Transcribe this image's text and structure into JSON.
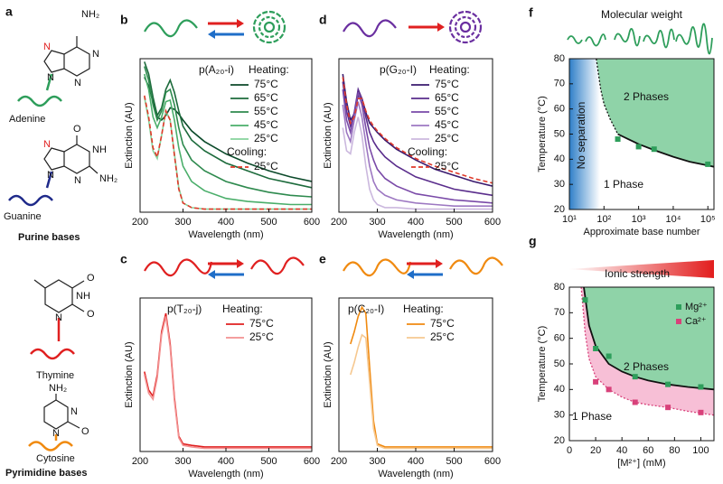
{
  "panel_a": {
    "label": "a",
    "molecules": [
      {
        "name": "Adenine",
        "atoms": [
          "NH₂",
          "N",
          "N",
          "N",
          "N"
        ]
      },
      {
        "name": "Guanine",
        "atoms": [
          "O",
          "NH",
          "NH₂",
          "N",
          "N",
          "N"
        ]
      },
      {
        "name": "Thymine",
        "atoms": [
          "O",
          "NH",
          "O",
          "N"
        ]
      },
      {
        "name": "Cytosine",
        "atoms": [
          "NH₂",
          "N",
          "O",
          "N"
        ]
      }
    ],
    "groups": [
      "Purine bases",
      "Pyrimidine bases"
    ]
  },
  "chart_data": [
    {
      "type": "spectrum",
      "label": "b",
      "title": "p(A₂₀-i)",
      "heating_label": "Heating:",
      "cooling_label": "Cooling:",
      "xlabel": "Wavelength (nm)",
      "ylabel": "Extinction (AU)",
      "xlim": [
        200,
        600
      ],
      "xticks": [
        200,
        300,
        400,
        500,
        600
      ],
      "ylim": [
        0,
        1
      ],
      "x": [
        210,
        220,
        230,
        240,
        250,
        260,
        270,
        280,
        290,
        300,
        320,
        350,
        400,
        450,
        500,
        550,
        600
      ],
      "series": [
        {
          "name": "75°C",
          "color": "#0b4a2a",
          "values": [
            0.88,
            0.82,
            0.72,
            0.62,
            0.6,
            0.63,
            0.68,
            0.67,
            0.64,
            0.6,
            0.53,
            0.46,
            0.38,
            0.32,
            0.27,
            0.23,
            0.2
          ]
        },
        {
          "name": "65°C",
          "color": "#1d6b3c",
          "values": [
            0.98,
            0.9,
            0.75,
            0.63,
            0.68,
            0.8,
            0.86,
            0.78,
            0.66,
            0.56,
            0.47,
            0.4,
            0.32,
            0.27,
            0.22,
            0.19,
            0.16
          ]
        },
        {
          "name": "55°C",
          "color": "#2e8a4e",
          "values": [
            0.95,
            0.86,
            0.7,
            0.6,
            0.66,
            0.78,
            0.8,
            0.7,
            0.55,
            0.44,
            0.34,
            0.27,
            0.2,
            0.16,
            0.13,
            0.11,
            0.1
          ]
        },
        {
          "name": "45°C",
          "color": "#4aae6a",
          "values": [
            0.9,
            0.8,
            0.62,
            0.55,
            0.62,
            0.72,
            0.73,
            0.6,
            0.42,
            0.3,
            0.2,
            0.14,
            0.09,
            0.07,
            0.06,
            0.05,
            0.05
          ]
        },
        {
          "name": "25°C",
          "color": "#86d39c",
          "values": [
            0.75,
            0.6,
            0.4,
            0.35,
            0.5,
            0.66,
            0.6,
            0.38,
            0.16,
            0.06,
            0.03,
            0.02,
            0.02,
            0.02,
            0.02,
            0.02,
            0.02
          ]
        },
        {
          "name": "25°C",
          "color": "#e03a2a",
          "dashed": true,
          "values": [
            0.76,
            0.62,
            0.42,
            0.36,
            0.5,
            0.66,
            0.6,
            0.37,
            0.15,
            0.06,
            0.03,
            0.02,
            0.02,
            0.02,
            0.02,
            0.02,
            0.02
          ]
        }
      ]
    },
    {
      "type": "spectrum",
      "label": "d",
      "title": "p(G₂₀-I)",
      "heating_label": "Heating:",
      "cooling_label": "Cooling:",
      "xlabel": "Wavelength (nm)",
      "ylabel": "Extinction (AU)",
      "xlim": [
        200,
        600
      ],
      "xticks": [
        200,
        300,
        400,
        500,
        600
      ],
      "ylim": [
        0,
        1
      ],
      "x": [
        210,
        220,
        230,
        240,
        250,
        260,
        270,
        280,
        290,
        300,
        320,
        350,
        400,
        450,
        500,
        550,
        600
      ],
      "series": [
        {
          "name": "75°C",
          "color": "#3a1a6e",
          "values": [
            0.9,
            0.72,
            0.6,
            0.64,
            0.76,
            0.74,
            0.65,
            0.58,
            0.55,
            0.52,
            0.47,
            0.41,
            0.34,
            0.28,
            0.24,
            0.2,
            0.17
          ]
        },
        {
          "name": "65°C",
          "color": "#5a2d8c",
          "values": [
            0.85,
            0.66,
            0.56,
            0.65,
            0.8,
            0.74,
            0.62,
            0.52,
            0.46,
            0.42,
            0.36,
            0.3,
            0.23,
            0.19,
            0.15,
            0.13,
            0.11
          ]
        },
        {
          "name": "55°C",
          "color": "#7a4aa8",
          "values": [
            0.8,
            0.6,
            0.52,
            0.64,
            0.78,
            0.7,
            0.55,
            0.42,
            0.34,
            0.28,
            0.22,
            0.17,
            0.12,
            0.1,
            0.08,
            0.07,
            0.06
          ]
        },
        {
          "name": "45°C",
          "color": "#9d78c2",
          "values": [
            0.7,
            0.52,
            0.46,
            0.6,
            0.72,
            0.62,
            0.45,
            0.3,
            0.2,
            0.15,
            0.11,
            0.08,
            0.06,
            0.05,
            0.04,
            0.04,
            0.04
          ]
        },
        {
          "name": "25°C",
          "color": "#cbb8de",
          "values": [
            0.55,
            0.4,
            0.38,
            0.52,
            0.62,
            0.5,
            0.3,
            0.15,
            0.08,
            0.05,
            0.03,
            0.03,
            0.02,
            0.02,
            0.02,
            0.02,
            0.02
          ]
        },
        {
          "name": "25°C",
          "color": "#e03a2a",
          "dashed": true,
          "values": [
            0.88,
            0.7,
            0.58,
            0.62,
            0.74,
            0.74,
            0.66,
            0.6,
            0.56,
            0.53,
            0.48,
            0.42,
            0.35,
            0.3,
            0.26,
            0.22,
            0.19
          ]
        }
      ]
    },
    {
      "type": "spectrum",
      "label": "c",
      "title": "p(T₂₀-j)",
      "heating_label": "Heating:",
      "xlabel": "Wavelength (nm)",
      "ylabel": "Extinction (AU)",
      "xlim": [
        200,
        600
      ],
      "xticks": [
        200,
        300,
        400,
        500,
        600
      ],
      "ylim": [
        0,
        1
      ],
      "x": [
        210,
        220,
        230,
        240,
        250,
        260,
        270,
        280,
        290,
        300,
        320,
        350,
        400,
        450,
        500,
        550,
        600
      ],
      "series": [
        {
          "name": "75°C",
          "color": "#e02020",
          "values": [
            0.52,
            0.4,
            0.36,
            0.5,
            0.78,
            0.9,
            0.7,
            0.35,
            0.1,
            0.05,
            0.04,
            0.03,
            0.03,
            0.03,
            0.03,
            0.03,
            0.03
          ]
        },
        {
          "name": "25°C",
          "color": "#f29090",
          "values": [
            0.5,
            0.38,
            0.34,
            0.48,
            0.76,
            0.88,
            0.68,
            0.33,
            0.09,
            0.04,
            0.03,
            0.02,
            0.02,
            0.02,
            0.02,
            0.02,
            0.02
          ]
        }
      ]
    },
    {
      "type": "spectrum",
      "label": "e",
      "title": "p(C₂₀-I)",
      "heating_label": "Heating:",
      "xlabel": "Wavelength (nm)",
      "ylabel": "Extinction (AU)",
      "xlim": [
        200,
        600
      ],
      "xticks": [
        200,
        300,
        400,
        500,
        600
      ],
      "ylim": [
        0,
        1
      ],
      "x": [
        230,
        240,
        250,
        260,
        270,
        280,
        290,
        300,
        320,
        350,
        400,
        450,
        500,
        550,
        600
      ],
      "series": [
        {
          "name": "75°C",
          "color": "#f08a10",
          "values": [
            0.7,
            0.78,
            0.88,
            0.94,
            0.9,
            0.55,
            0.2,
            0.05,
            0.03,
            0.03,
            0.03,
            0.03,
            0.03,
            0.03,
            0.03
          ]
        },
        {
          "name": "25°C",
          "color": "#f6c890",
          "values": [
            0.5,
            0.58,
            0.68,
            0.76,
            0.74,
            0.45,
            0.15,
            0.04,
            0.02,
            0.02,
            0.02,
            0.02,
            0.02,
            0.02,
            0.02
          ]
        }
      ]
    },
    {
      "type": "phase",
      "label": "f",
      "header": "Molecular weight",
      "xlabel": "Approximate base number",
      "ylabel": "Temperature (°C)",
      "log_x": true,
      "xlim": [
        10,
        150000
      ],
      "xticks": [
        {
          "value": 10,
          "label": "10¹"
        },
        {
          "value": 100,
          "label": "10²"
        },
        {
          "value": 1000,
          "label": "10³"
        },
        {
          "value": 10000,
          "label": "10⁴"
        },
        {
          "value": 100000,
          "label": "10⁵"
        }
      ],
      "ylim": [
        20,
        80
      ],
      "yticks": [
        20,
        30,
        40,
        50,
        60,
        70,
        80
      ],
      "annotations": [
        "No separation",
        "2 Phases",
        "1 Phase"
      ],
      "series": [
        {
          "color": "#2e9e5b",
          "x": [
            250,
            1000,
            2800,
            100000
          ],
          "values": [
            48,
            45,
            44,
            38
          ]
        }
      ],
      "curves": [
        {
          "style": "dotted",
          "color": "#111111",
          "x": [
            60,
            80,
            100,
            150,
            250
          ],
          "values": [
            80,
            68,
            62,
            56,
            50
          ]
        },
        {
          "style": "solid",
          "color": "#111111",
          "x": [
            250,
            500,
            1000,
            3000,
            10000,
            30000,
            100000,
            150000
          ],
          "values": [
            50,
            48,
            46,
            43.5,
            41,
            39,
            37.5,
            37
          ]
        }
      ],
      "region_color": "#8fd3a8"
    },
    {
      "type": "phase",
      "label": "g",
      "header": "Ionic strength",
      "xlabel": "[M²⁺] (mM)",
      "ylabel": "Temperature (°C)",
      "xlim": [
        0,
        110
      ],
      "xticks": [
        0,
        20,
        40,
        60,
        80,
        100
      ],
      "ylim": [
        20,
        80
      ],
      "yticks": [
        20,
        30,
        40,
        50,
        60,
        70,
        80
      ],
      "annotations": [
        "2 Phases",
        "1 Phase"
      ],
      "legend": "top-right",
      "series": [
        {
          "name": "Mg²⁺",
          "color": "#2e9e5b",
          "x": [
            12,
            20,
            30,
            50,
            75,
            100
          ],
          "values": [
            75,
            56,
            53,
            45,
            42,
            41
          ]
        },
        {
          "name": "Ca²⁺",
          "color": "#d8417a",
          "x": [
            20,
            30,
            50,
            75,
            100
          ],
          "values": [
            43,
            40,
            35,
            33,
            31
          ]
        }
      ],
      "curves": [
        {
          "style": "solid",
          "color": "#111111",
          "fill": "#8fd3a8",
          "x": [
            11,
            15,
            20,
            30,
            40,
            50,
            60,
            75,
            90,
            110
          ],
          "values": [
            80,
            65,
            57,
            50,
            47,
            45,
            43.5,
            42,
            41,
            40
          ]
        },
        {
          "style": "dotted",
          "color": "#d8417a",
          "fill": "#f7bfd6",
          "x": [
            9,
            12,
            15,
            20,
            30,
            40,
            50,
            60,
            75,
            90,
            110
          ],
          "values": [
            80,
            62,
            52,
            45,
            40,
            37,
            35,
            34,
            33,
            31.5,
            30
          ]
        }
      ]
    }
  ]
}
